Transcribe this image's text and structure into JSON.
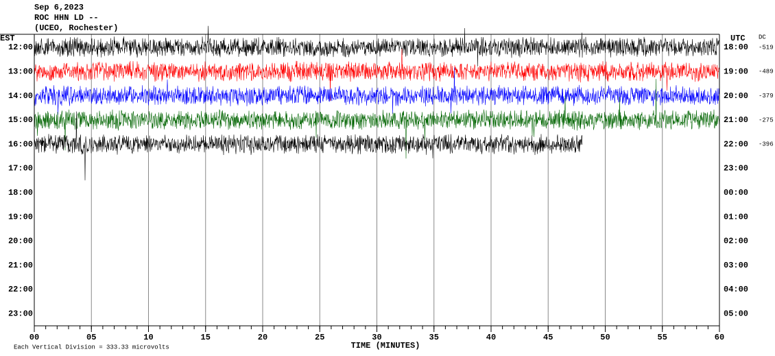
{
  "chart_data": {
    "type": "helicorder",
    "title_lines": [
      "Sep 6,2023",
      "ROC HHN LD --",
      "(UCEO, Rochester)"
    ],
    "left_axis_label": "EST",
    "right_axis_label": "UTC",
    "offset_label": "DC",
    "xlabel": "TIME (MINUTES)",
    "footer": "Each Vertical Division =  333.33 microvolts",
    "xlim": [
      0,
      60
    ],
    "xticks": [
      {
        "value": 0,
        "label": "00"
      },
      {
        "value": 5,
        "label": "05"
      },
      10,
      15,
      20,
      25,
      30,
      35,
      40,
      45,
      50,
      55,
      60
    ],
    "grid": true,
    "rows": [
      {
        "est": "12:00",
        "utc": "18:00",
        "dc": -519,
        "color": "#000000",
        "end": 60
      },
      {
        "est": "13:00",
        "utc": "19:00",
        "dc": -489,
        "color": "#ff0000",
        "end": 60
      },
      {
        "est": "14:00",
        "utc": "20:00",
        "dc": -379,
        "color": "#0000ff",
        "end": 60
      },
      {
        "est": "15:00",
        "utc": "21:00",
        "dc": -275,
        "color": "#006400",
        "end": 60
      },
      {
        "est": "16:00",
        "utc": "22:00",
        "dc": -396,
        "color": "#000000",
        "end": 48
      },
      {
        "est": "17:00",
        "utc": "23:00"
      },
      {
        "est": "18:00",
        "utc": "00:00"
      },
      {
        "est": "19:00",
        "utc": "01:00"
      },
      {
        "est": "20:00",
        "utc": "02:00"
      },
      {
        "est": "21:00",
        "utc": "03:00"
      },
      {
        "est": "22:00",
        "utc": "04:00"
      },
      {
        "est": "23:00",
        "utc": "05:00"
      }
    ]
  }
}
